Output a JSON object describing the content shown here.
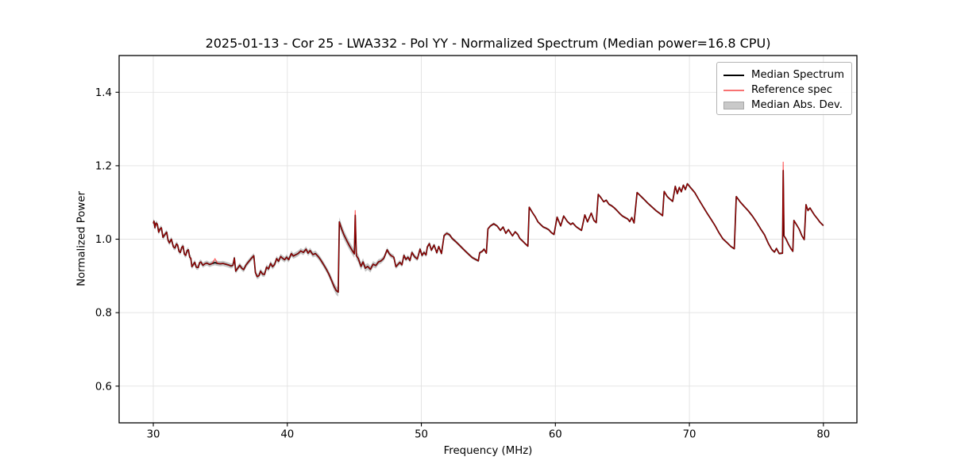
{
  "figure": {
    "title": "2025-01-13 - Cor 25 - LWA332 - Pol YY - Normalized Spectrum (Median power=16.8 CPU)"
  },
  "chart_data": {
    "type": "line",
    "title": "2025-01-13 - Cor 25 - LWA332 - Pol YY - Normalized Spectrum (Median power=16.8 CPU)",
    "xlabel": "Frequency (MHz)",
    "ylabel": "Normalized Power",
    "xlim": [
      27.45,
      82.5
    ],
    "ylim": [
      0.5,
      1.5
    ],
    "x_ticks": [
      30,
      40,
      50,
      60,
      70,
      80
    ],
    "y_ticks": [
      0.6,
      0.8,
      1.0,
      1.2,
      1.4
    ],
    "grid": true,
    "grid_color": "#e2e2e2",
    "legend": {
      "position": "upper right",
      "entries": [
        {
          "label": "Median Spectrum",
          "type": "line",
          "color": "#000000"
        },
        {
          "label": "Reference spec",
          "type": "line",
          "color": "#f87272"
        },
        {
          "label": "Median Abs. Dev.",
          "type": "patch",
          "color": "#c9c9c9"
        }
      ]
    },
    "series": [
      {
        "name": "Median Spectrum",
        "color": "#000000",
        "points": [
          [
            30.0,
            1.043
          ],
          [
            30.05,
            1.049
          ],
          [
            30.12,
            1.031
          ],
          [
            30.2,
            1.044
          ],
          [
            30.3,
            1.041
          ],
          [
            30.4,
            1.019
          ],
          [
            30.5,
            1.028
          ],
          [
            30.6,
            1.031
          ],
          [
            30.72,
            1.005
          ],
          [
            30.85,
            1.012
          ],
          [
            31.0,
            1.019
          ],
          [
            31.1,
            0.997
          ],
          [
            31.2,
            0.99
          ],
          [
            31.35,
            1.0
          ],
          [
            31.5,
            0.979
          ],
          [
            31.62,
            0.976
          ],
          [
            31.72,
            0.987
          ],
          [
            31.82,
            0.984
          ],
          [
            31.92,
            0.967
          ],
          [
            32.02,
            0.964
          ],
          [
            32.12,
            0.977
          ],
          [
            32.22,
            0.981
          ],
          [
            32.32,
            0.959
          ],
          [
            32.42,
            0.956
          ],
          [
            32.52,
            0.969
          ],
          [
            32.62,
            0.971
          ],
          [
            32.72,
            0.951
          ],
          [
            32.8,
            0.948
          ],
          [
            32.88,
            0.925
          ],
          [
            33.0,
            0.932
          ],
          [
            33.1,
            0.937
          ],
          [
            33.2,
            0.924
          ],
          [
            33.35,
            0.923
          ],
          [
            33.45,
            0.936
          ],
          [
            33.55,
            0.938
          ],
          [
            33.7,
            0.929
          ],
          [
            33.85,
            0.933
          ],
          [
            34.0,
            0.935
          ],
          [
            34.2,
            0.931
          ],
          [
            34.4,
            0.934
          ],
          [
            34.6,
            0.936
          ],
          [
            34.8,
            0.934
          ],
          [
            35.0,
            0.933
          ],
          [
            35.2,
            0.934
          ],
          [
            35.4,
            0.932
          ],
          [
            35.6,
            0.93
          ],
          [
            35.8,
            0.927
          ],
          [
            35.95,
            0.929
          ],
          [
            36.05,
            0.949
          ],
          [
            36.15,
            0.913
          ],
          [
            36.3,
            0.921
          ],
          [
            36.45,
            0.929
          ],
          [
            36.6,
            0.921
          ],
          [
            36.75,
            0.917
          ],
          [
            36.9,
            0.929
          ],
          [
            37.1,
            0.938
          ],
          [
            37.3,
            0.947
          ],
          [
            37.5,
            0.955
          ],
          [
            37.62,
            0.909
          ],
          [
            37.75,
            0.898
          ],
          [
            37.9,
            0.901
          ],
          [
            38.0,
            0.913
          ],
          [
            38.15,
            0.905
          ],
          [
            38.3,
            0.904
          ],
          [
            38.45,
            0.924
          ],
          [
            38.6,
            0.919
          ],
          [
            38.75,
            0.934
          ],
          [
            38.9,
            0.925
          ],
          [
            39.05,
            0.931
          ],
          [
            39.2,
            0.947
          ],
          [
            39.35,
            0.94
          ],
          [
            39.5,
            0.953
          ],
          [
            39.65,
            0.948
          ],
          [
            39.8,
            0.944
          ],
          [
            39.95,
            0.951
          ],
          [
            40.1,
            0.944
          ],
          [
            40.3,
            0.961
          ],
          [
            40.45,
            0.954
          ],
          [
            40.6,
            0.957
          ],
          [
            40.8,
            0.961
          ],
          [
            41.0,
            0.968
          ],
          [
            41.2,
            0.964
          ],
          [
            41.4,
            0.973
          ],
          [
            41.55,
            0.962
          ],
          [
            41.7,
            0.969
          ],
          [
            41.9,
            0.958
          ],
          [
            42.1,
            0.961
          ],
          [
            42.3,
            0.953
          ],
          [
            42.5,
            0.943
          ],
          [
            42.7,
            0.931
          ],
          [
            42.9,
            0.919
          ],
          [
            43.1,
            0.905
          ],
          [
            43.3,
            0.888
          ],
          [
            43.5,
            0.87
          ],
          [
            43.65,
            0.86
          ],
          [
            43.8,
            0.856
          ],
          [
            43.88,
            1.047
          ],
          [
            44.05,
            1.028
          ],
          [
            44.25,
            1.01
          ],
          [
            44.45,
            0.995
          ],
          [
            44.65,
            0.981
          ],
          [
            44.85,
            0.969
          ],
          [
            45.0,
            0.96
          ],
          [
            45.07,
            1.065
          ],
          [
            45.15,
            0.955
          ],
          [
            45.3,
            0.947
          ],
          [
            45.5,
            0.926
          ],
          [
            45.65,
            0.938
          ],
          [
            45.82,
            0.921
          ],
          [
            46.0,
            0.926
          ],
          [
            46.2,
            0.918
          ],
          [
            46.4,
            0.932
          ],
          [
            46.6,
            0.928
          ],
          [
            46.8,
            0.938
          ],
          [
            47.0,
            0.941
          ],
          [
            47.2,
            0.948
          ],
          [
            47.45,
            0.971
          ],
          [
            47.6,
            0.961
          ],
          [
            47.75,
            0.955
          ],
          [
            47.95,
            0.951
          ],
          [
            48.1,
            0.925
          ],
          [
            48.25,
            0.931
          ],
          [
            48.4,
            0.937
          ],
          [
            48.55,
            0.93
          ],
          [
            48.7,
            0.956
          ],
          [
            48.85,
            0.945
          ],
          [
            49.0,
            0.951
          ],
          [
            49.15,
            0.942
          ],
          [
            49.3,
            0.964
          ],
          [
            49.5,
            0.952
          ],
          [
            49.7,
            0.946
          ],
          [
            49.9,
            0.973
          ],
          [
            50.05,
            0.956
          ],
          [
            50.2,
            0.964
          ],
          [
            50.35,
            0.957
          ],
          [
            50.45,
            0.979
          ],
          [
            50.6,
            0.988
          ],
          [
            50.75,
            0.97
          ],
          [
            50.95,
            0.984
          ],
          [
            51.15,
            0.963
          ],
          [
            51.3,
            0.98
          ],
          [
            51.5,
            0.961
          ],
          [
            51.7,
            1.01
          ],
          [
            51.9,
            1.016
          ],
          [
            52.1,
            1.012
          ],
          [
            52.3,
            1.002
          ],
          [
            52.55,
            0.994
          ],
          [
            52.8,
            0.985
          ],
          [
            53.05,
            0.976
          ],
          [
            53.3,
            0.967
          ],
          [
            53.55,
            0.958
          ],
          [
            53.8,
            0.95
          ],
          [
            54.05,
            0.945
          ],
          [
            54.25,
            0.941
          ],
          [
            54.35,
            0.963
          ],
          [
            54.55,
            0.967
          ],
          [
            54.68,
            0.973
          ],
          [
            54.85,
            0.962
          ],
          [
            54.97,
            1.028
          ],
          [
            55.15,
            1.036
          ],
          [
            55.4,
            1.042
          ],
          [
            55.65,
            1.036
          ],
          [
            55.9,
            1.024
          ],
          [
            56.1,
            1.033
          ],
          [
            56.3,
            1.016
          ],
          [
            56.5,
            1.026
          ],
          [
            56.8,
            1.009
          ],
          [
            57.0,
            1.02
          ],
          [
            57.2,
            1.013
          ],
          [
            57.35,
            1.002
          ],
          [
            57.55,
            0.995
          ],
          [
            57.75,
            0.988
          ],
          [
            57.95,
            0.981
          ],
          [
            58.05,
            1.087
          ],
          [
            58.3,
            1.072
          ],
          [
            58.5,
            1.061
          ],
          [
            58.7,
            1.047
          ],
          [
            58.9,
            1.04
          ],
          [
            59.1,
            1.033
          ],
          [
            59.3,
            1.03
          ],
          [
            59.5,
            1.026
          ],
          [
            59.7,
            1.018
          ],
          [
            59.9,
            1.013
          ],
          [
            60.13,
            1.06
          ],
          [
            60.4,
            1.036
          ],
          [
            60.62,
            1.063
          ],
          [
            60.9,
            1.048
          ],
          [
            61.15,
            1.04
          ],
          [
            61.3,
            1.044
          ],
          [
            61.55,
            1.034
          ],
          [
            61.75,
            1.029
          ],
          [
            61.95,
            1.024
          ],
          [
            62.2,
            1.066
          ],
          [
            62.4,
            1.047
          ],
          [
            62.68,
            1.071
          ],
          [
            62.88,
            1.051
          ],
          [
            63.05,
            1.045
          ],
          [
            63.2,
            1.122
          ],
          [
            63.4,
            1.113
          ],
          [
            63.6,
            1.102
          ],
          [
            63.8,
            1.106
          ],
          [
            64.0,
            1.095
          ],
          [
            64.2,
            1.091
          ],
          [
            64.4,
            1.085
          ],
          [
            64.6,
            1.078
          ],
          [
            64.8,
            1.07
          ],
          [
            65.0,
            1.063
          ],
          [
            65.2,
            1.059
          ],
          [
            65.4,
            1.055
          ],
          [
            65.55,
            1.048
          ],
          [
            65.7,
            1.059
          ],
          [
            65.87,
            1.044
          ],
          [
            66.1,
            1.127
          ],
          [
            66.35,
            1.118
          ],
          [
            66.6,
            1.109
          ],
          [
            66.9,
            1.098
          ],
          [
            67.2,
            1.088
          ],
          [
            67.5,
            1.078
          ],
          [
            67.8,
            1.07
          ],
          [
            68.0,
            1.064
          ],
          [
            68.12,
            1.13
          ],
          [
            68.35,
            1.116
          ],
          [
            68.55,
            1.109
          ],
          [
            68.75,
            1.103
          ],
          [
            68.95,
            1.144
          ],
          [
            69.1,
            1.124
          ],
          [
            69.25,
            1.141
          ],
          [
            69.4,
            1.129
          ],
          [
            69.55,
            1.147
          ],
          [
            69.7,
            1.135
          ],
          [
            69.85,
            1.151
          ],
          [
            70.1,
            1.14
          ],
          [
            70.4,
            1.127
          ],
          [
            70.7,
            1.108
          ],
          [
            71.0,
            1.09
          ],
          [
            71.3,
            1.072
          ],
          [
            71.6,
            1.055
          ],
          [
            71.9,
            1.038
          ],
          [
            72.2,
            1.018
          ],
          [
            72.5,
            1.001
          ],
          [
            72.8,
            0.991
          ],
          [
            73.1,
            0.98
          ],
          [
            73.35,
            0.974
          ],
          [
            73.5,
            1.116
          ],
          [
            73.8,
            1.101
          ],
          [
            74.1,
            1.089
          ],
          [
            74.4,
            1.077
          ],
          [
            74.7,
            1.063
          ],
          [
            75.0,
            1.047
          ],
          [
            75.3,
            1.029
          ],
          [
            75.6,
            1.012
          ],
          [
            75.9,
            0.988
          ],
          [
            76.15,
            0.972
          ],
          [
            76.35,
            0.965
          ],
          [
            76.5,
            0.975
          ],
          [
            76.7,
            0.961
          ],
          [
            76.95,
            0.962
          ],
          [
            77.0,
            1.187
          ],
          [
            77.06,
            1.009
          ],
          [
            77.2,
            1.001
          ],
          [
            77.4,
            0.986
          ],
          [
            77.6,
            0.973
          ],
          [
            77.72,
            0.967
          ],
          [
            77.8,
            1.051
          ],
          [
            78.0,
            1.039
          ],
          [
            78.2,
            1.027
          ],
          [
            78.4,
            1.009
          ],
          [
            78.57,
            0.999
          ],
          [
            78.7,
            1.094
          ],
          [
            78.85,
            1.078
          ],
          [
            79.0,
            1.085
          ],
          [
            79.15,
            1.076
          ],
          [
            79.35,
            1.065
          ],
          [
            79.55,
            1.056
          ],
          [
            79.75,
            1.046
          ],
          [
            80.0,
            1.037
          ]
        ]
      },
      {
        "name": "Reference spec",
        "color": "rgba(255,0,0,0.62)",
        "base": "Median Spectrum",
        "spike_overrides": [
          [
            34.6,
            0.947
          ],
          [
            45.07,
            1.078
          ],
          [
            77.0,
            1.21
          ]
        ]
      }
    ],
    "mad_band": {
      "name": "Median Abs. Dev.",
      "color": "rgba(128,128,128,0.45)",
      "width_keyframes": [
        [
          30,
          0.007
        ],
        [
          36,
          0.007
        ],
        [
          43,
          0.008
        ],
        [
          43.9,
          0.013
        ],
        [
          45.3,
          0.011
        ],
        [
          47,
          0.007
        ],
        [
          50,
          0.006
        ],
        [
          53,
          0.004
        ],
        [
          58,
          0.003
        ],
        [
          80,
          0.003
        ]
      ]
    }
  }
}
